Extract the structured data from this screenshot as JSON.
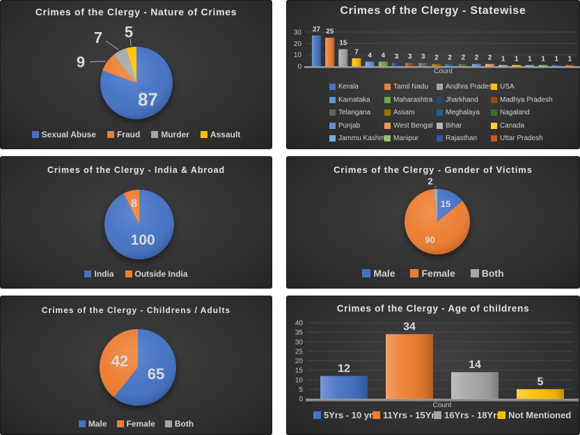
{
  "page": {
    "background": "#ffffff"
  },
  "theme": {
    "panel_bg_center": "#3f3f3f",
    "panel_bg_edge": "#202020",
    "title_color": "#e4e4e4",
    "data_label_color": "#dcdcdc",
    "axis_text_color": "#c4c4c4",
    "gridline_color": "#484848",
    "floor_color": "#828282",
    "leader_line_color": "#b4b4b4",
    "legend_text_color": "#d2d2d2"
  },
  "chart_data": [
    {
      "type": "pie",
      "title": "Crimes of the Clergy - Nature of Crimes",
      "categories": [
        "Sexual Abuse",
        "Fraud",
        "Murder",
        "Assault"
      ],
      "values": [
        87,
        9,
        7,
        5
      ],
      "colors": [
        "#4472C4",
        "#ED7D31",
        "#A5A5A5",
        "#FFC000"
      ],
      "legend_position": "bottom"
    },
    {
      "type": "bar",
      "title": "Crimes of the Clergy - Statewise",
      "categories": [
        "Kerala",
        "Tamil Nadu",
        "Andhra Pradesh",
        "USA",
        "Karnataka",
        "Maharashtra",
        "Jharkhand",
        "Madhya Pradesh",
        "Telangana",
        "Assam",
        "Meghalaya",
        "Nagaland",
        "Punjab",
        "West Bengal",
        "Bihar",
        "Canada",
        "Jammu Kashmir",
        "Manipur",
        "Rajasthan",
        "Uttar Pradesh"
      ],
      "values": [
        27,
        25,
        15,
        7,
        4,
        4,
        3,
        3,
        3,
        2,
        2,
        2,
        2,
        2,
        1,
        1,
        1,
        1,
        1,
        1
      ],
      "colors": [
        "#4472C4",
        "#ED7D31",
        "#A5A5A5",
        "#FFC000",
        "#5B9BD5",
        "#70AD47",
        "#264478",
        "#9E480E",
        "#636363",
        "#997300",
        "#255E91",
        "#43682B",
        "#698ED0",
        "#F1975A",
        "#B7B7B7",
        "#FFCD33",
        "#7CAFDD",
        "#8CC168",
        "#335AA1",
        "#C55A11"
      ],
      "xlabel": "Count",
      "ylabel": "",
      "y_ticks": [
        0,
        10,
        20,
        30
      ],
      "ylim": [
        0,
        30
      ],
      "grid": true,
      "legend_position": "bottom-grid"
    },
    {
      "type": "pie",
      "title": "Crimes of the Clergy - India & Abroad",
      "categories": [
        "India",
        "Outside India"
      ],
      "values": [
        100,
        8
      ],
      "colors": [
        "#4472C4",
        "#ED7D31"
      ],
      "legend_position": "bottom"
    },
    {
      "type": "pie",
      "title": "Crimes of the Clergy - Gender of Victims",
      "categories": [
        "Male",
        "Female",
        "Both"
      ],
      "values": [
        15,
        90,
        2
      ],
      "colors": [
        "#4472C4",
        "#ED7D31",
        "#A5A5A5"
      ],
      "legend_position": "bottom"
    },
    {
      "type": "pie",
      "title": "Crimes of the Clergy - Childrens / Adults",
      "categories": [
        "Male",
        "Female",
        "Both"
      ],
      "values": [
        65,
        42,
        0
      ],
      "colors": [
        "#4472C4",
        "#ED7D31",
        "#A5A5A5"
      ],
      "legend_position": "bottom"
    },
    {
      "type": "bar",
      "title": "Crimes of the Clergy - Age of childrens",
      "categories": [
        "5Yrs - 10 yrs",
        "11Yrs - 15Yrs",
        "16Yrs - 18Yrs",
        "Not Mentioned"
      ],
      "values": [
        12,
        34,
        14,
        5
      ],
      "colors": [
        "#4472C4",
        "#ED7D31",
        "#A5A5A5",
        "#FFC000"
      ],
      "xlabel": "Count",
      "ylabel": "",
      "y_ticks": [
        0,
        5,
        10,
        15,
        20,
        25,
        30,
        35,
        40
      ],
      "ylim": [
        0,
        40
      ],
      "grid": true,
      "legend_position": "bottom"
    }
  ]
}
